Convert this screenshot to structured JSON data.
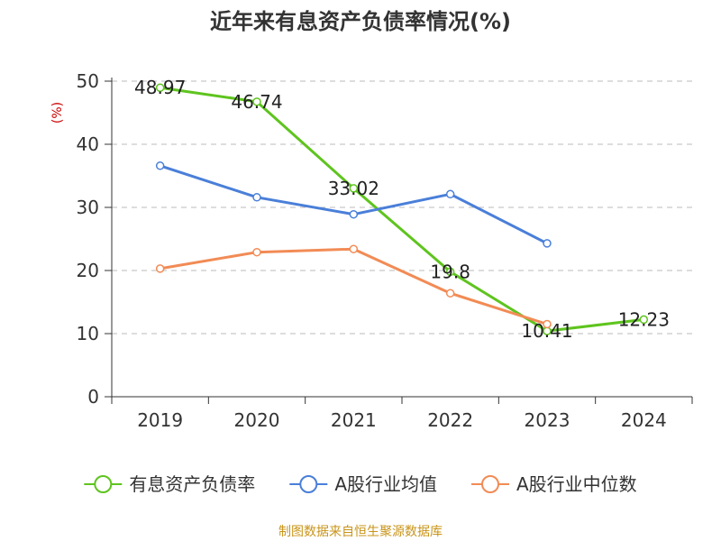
{
  "chart_data": {
    "type": "line",
    "title": "近年来有息资产负债率情况(%)",
    "ylabel": "(%)",
    "xlabel": "",
    "categories": [
      "2019",
      "2020",
      "2021",
      "2022",
      "2023",
      "2024"
    ],
    "ylim": [
      0,
      50
    ],
    "yticks": [
      0,
      10,
      20,
      30,
      40,
      50
    ],
    "grid": true,
    "legend_position": "bottom",
    "series": [
      {
        "name": "有息资产负债率",
        "color": "#5ec41e",
        "values": [
          48.97,
          46.74,
          33.02,
          19.8,
          10.41,
          12.23
        ],
        "labels": [
          "48.97",
          "46.74",
          "33.02",
          "19.8",
          "10.41",
          "12.23"
        ]
      },
      {
        "name": "A股行业均值",
        "color": "#4a7fd9",
        "values": [
          36.6,
          31.6,
          28.9,
          32.1,
          24.3,
          null
        ]
      },
      {
        "name": "A股行业中位数",
        "color": "#f28b55",
        "values": [
          20.3,
          22.9,
          23.4,
          16.4,
          11.5,
          null
        ]
      }
    ]
  },
  "source": "制图数据来自恒生聚源数据库"
}
